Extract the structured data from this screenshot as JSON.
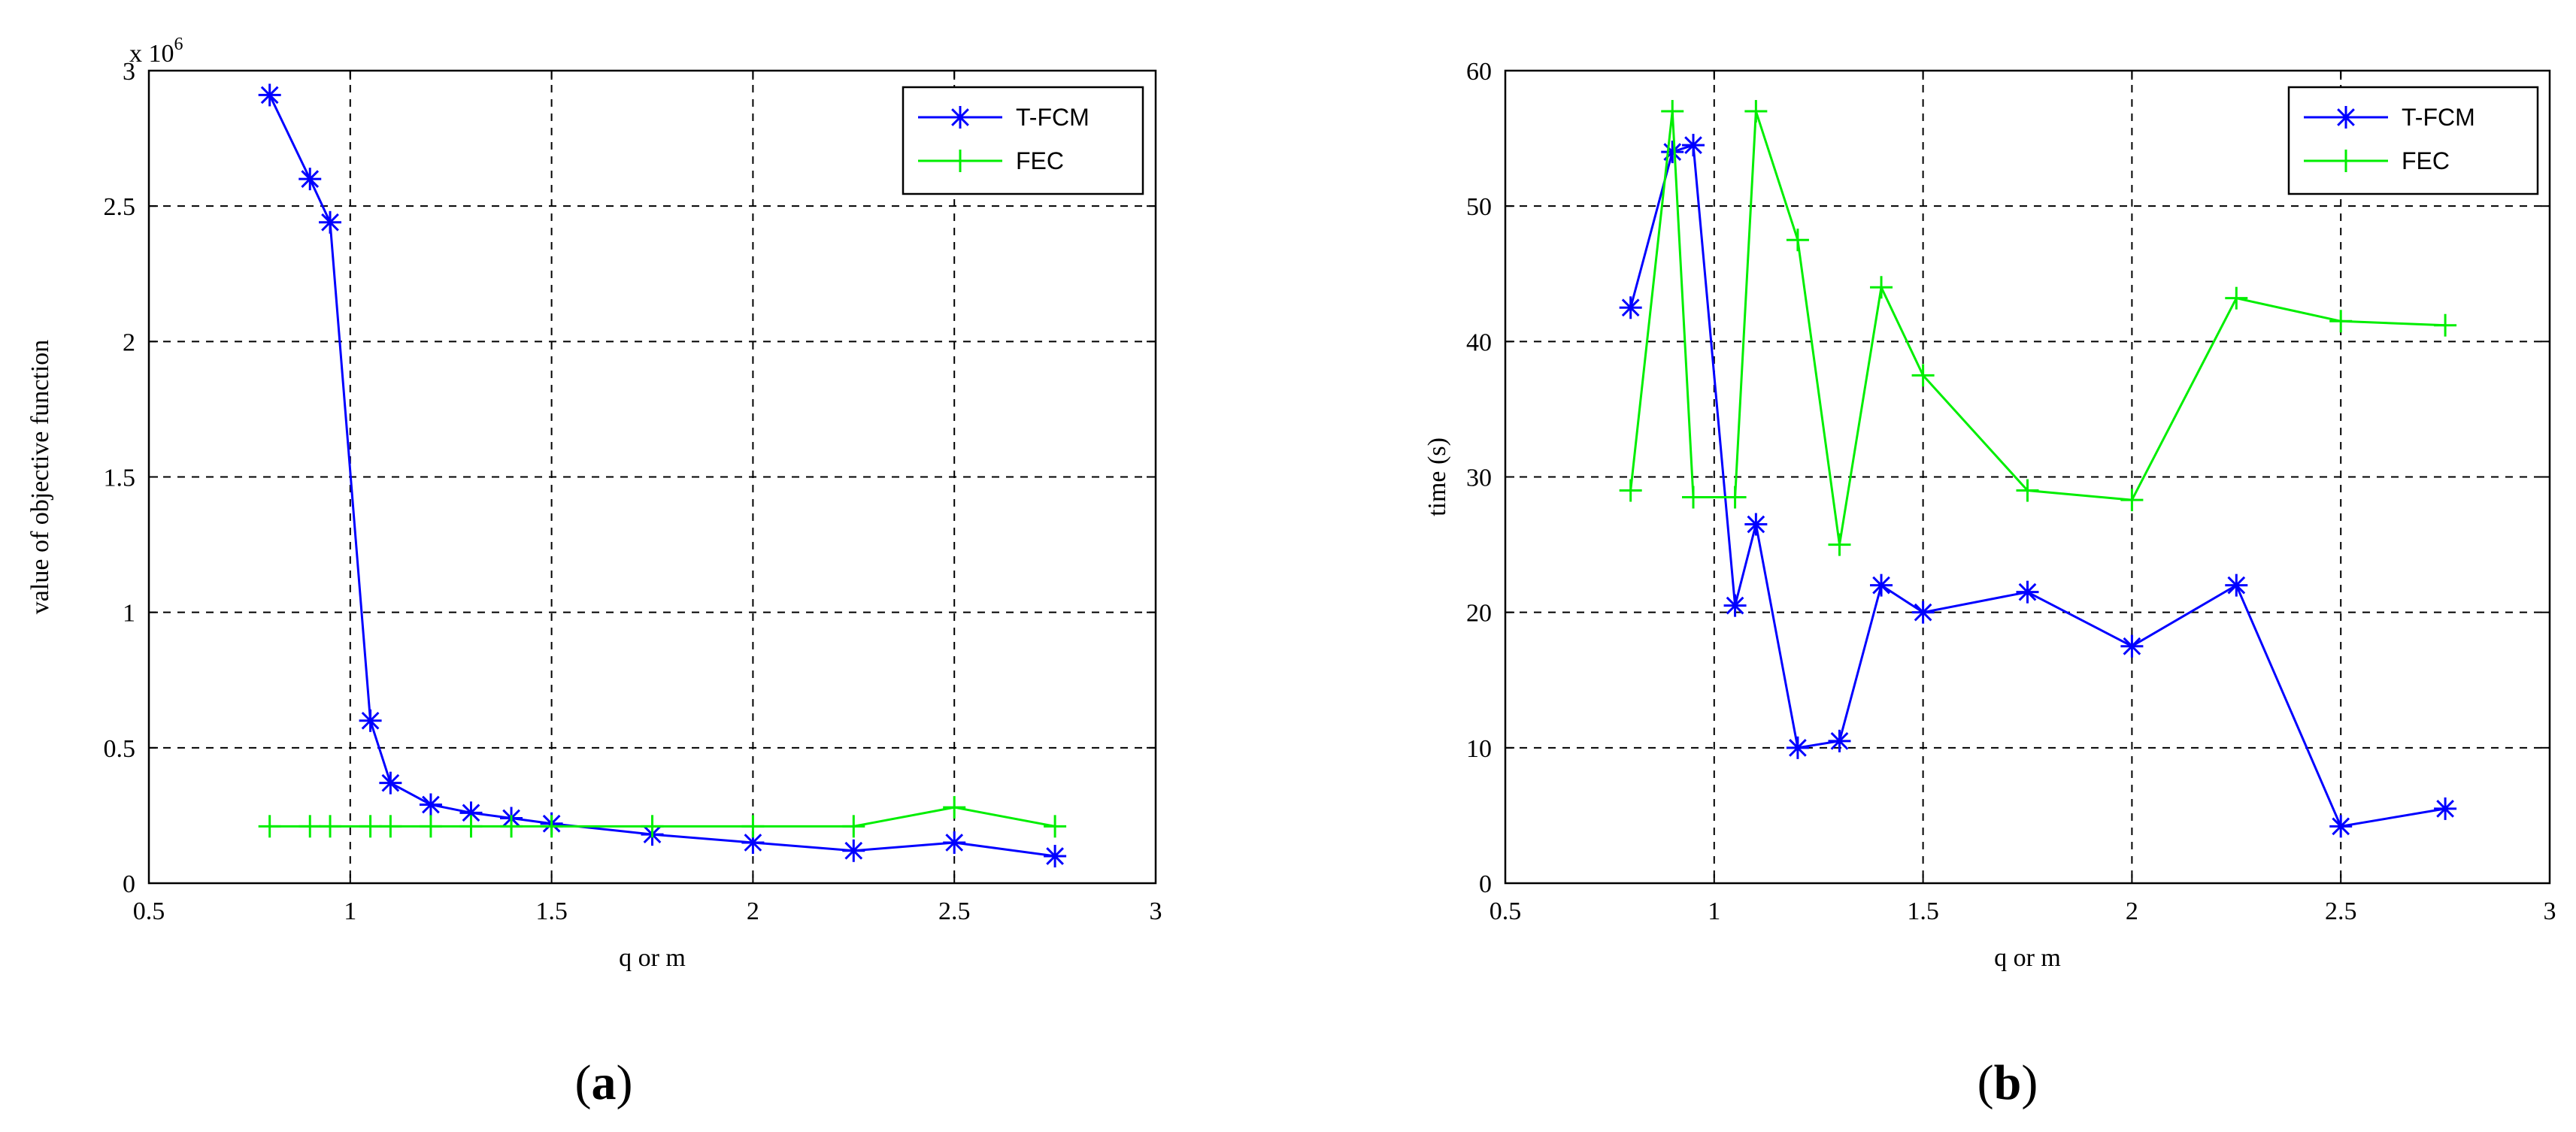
{
  "colors": {
    "tfcm": "#0000ff",
    "fec": "#00ee00",
    "grid": "#000000"
  },
  "charts": [
    {
      "panel_label_open": "(",
      "panel_label_letter": "a",
      "panel_label_close": ")",
      "exponent_base": "x 10",
      "exponent_power": "6"
    },
    {
      "panel_label_open": "(",
      "panel_label_letter": "b",
      "panel_label_close": ")"
    }
  ],
  "chart_data": [
    {
      "type": "line",
      "title": "",
      "xlabel": "q or m",
      "ylabel": "value of objective function",
      "xlim": [
        0.5,
        3
      ],
      "ylim": [
        0,
        3
      ],
      "y_scale_note": "x 10^6",
      "xticks": [
        "0.5",
        "1",
        "1.5",
        "2",
        "2.5",
        "3"
      ],
      "yticks": [
        "0",
        "0.5",
        "1",
        "1.5",
        "2",
        "2.5",
        "3"
      ],
      "grid": true,
      "legend_position": "top-right",
      "series": [
        {
          "name": "T-FCM",
          "color": "#0000ff",
          "marker": "asterisk",
          "x": [
            0.8,
            0.9,
            0.95,
            1.05,
            1.1,
            1.2,
            1.3,
            1.4,
            1.5,
            1.75,
            2.0,
            2.25,
            2.5,
            2.75
          ],
          "y": [
            2.91,
            2.6,
            2.44,
            0.6,
            0.37,
            0.29,
            0.26,
            0.24,
            0.22,
            0.18,
            0.15,
            0.12,
            0.15,
            0.1
          ]
        },
        {
          "name": "FEC",
          "color": "#00ee00",
          "marker": "plus",
          "x": [
            0.8,
            0.9,
            0.95,
            1.05,
            1.1,
            1.2,
            1.3,
            1.4,
            1.5,
            1.75,
            2.0,
            2.25,
            2.5,
            2.75
          ],
          "y": [
            0.21,
            0.21,
            0.21,
            0.21,
            0.21,
            0.21,
            0.21,
            0.21,
            0.21,
            0.21,
            0.21,
            0.21,
            0.28,
            0.21
          ]
        }
      ]
    },
    {
      "type": "line",
      "title": "",
      "xlabel": "q or m",
      "ylabel": "time (s)",
      "xlim": [
        0.5,
        3
      ],
      "ylim": [
        0,
        60
      ],
      "xticks": [
        "0.5",
        "1",
        "1.5",
        "2",
        "2.5",
        "3"
      ],
      "yticks": [
        "0",
        "10",
        "20",
        "30",
        "40",
        "50",
        "60"
      ],
      "grid": true,
      "legend_position": "top-right",
      "series": [
        {
          "name": "T-FCM",
          "color": "#0000ff",
          "marker": "asterisk",
          "x": [
            0.8,
            0.9,
            0.95,
            1.05,
            1.1,
            1.2,
            1.3,
            1.4,
            1.5,
            1.75,
            2.0,
            2.25,
            2.5,
            2.75
          ],
          "y": [
            42.5,
            54.0,
            54.5,
            20.5,
            26.5,
            10.0,
            10.5,
            22.0,
            20.0,
            21.5,
            17.5,
            22.0,
            4.2,
            5.5
          ]
        },
        {
          "name": "FEC",
          "color": "#00ee00",
          "marker": "plus",
          "x": [
            0.8,
            0.9,
            0.95,
            1.05,
            1.1,
            1.2,
            1.3,
            1.4,
            1.5,
            1.75,
            2.0,
            2.25,
            2.5,
            2.75
          ],
          "y": [
            29.0,
            57.0,
            28.5,
            28.5,
            57.0,
            47.5,
            25.0,
            44.0,
            37.5,
            29.0,
            28.3,
            43.2,
            41.5,
            41.2
          ]
        }
      ]
    }
  ]
}
